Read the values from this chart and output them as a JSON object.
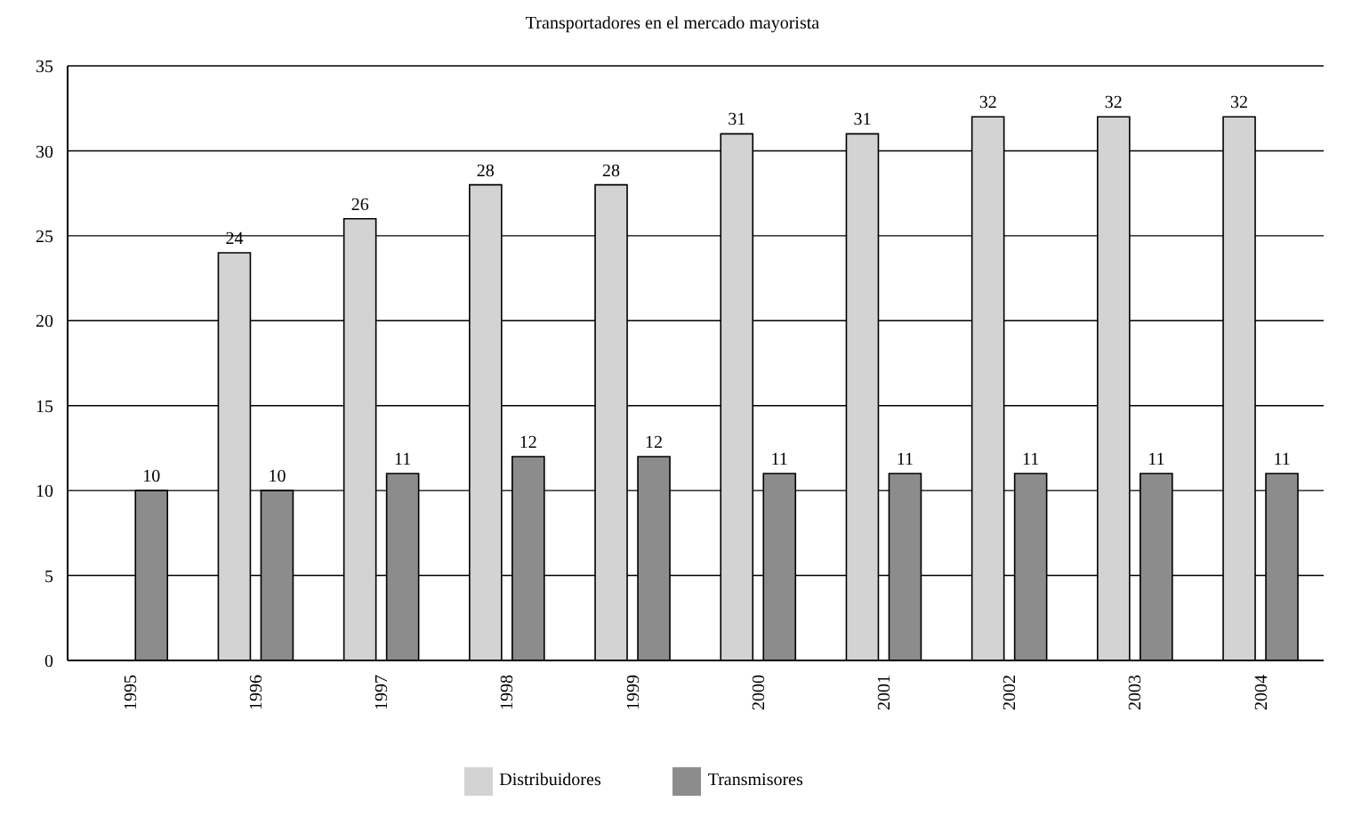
{
  "chart_data": {
    "type": "bar",
    "title": "Transportadores en el mercado mayorista",
    "categories": [
      "1995",
      "1996",
      "1997",
      "1998",
      "1999",
      "2000",
      "2001",
      "2002",
      "2003",
      "2004"
    ],
    "series": [
      {
        "name": "Distribuidores",
        "color": "#d3d3d3",
        "values": [
          null,
          24,
          26,
          28,
          28,
          31,
          31,
          32,
          32,
          32
        ]
      },
      {
        "name": "Transmisores",
        "color": "#8c8c8c",
        "values": [
          10,
          10,
          11,
          12,
          12,
          11,
          11,
          11,
          11,
          11
        ]
      }
    ],
    "ylim": [
      0,
      35
    ],
    "yticks": [
      0,
      5,
      10,
      15,
      20,
      25,
      30,
      35
    ],
    "grid": "y",
    "legend": "bottom",
    "data_labels": true
  }
}
